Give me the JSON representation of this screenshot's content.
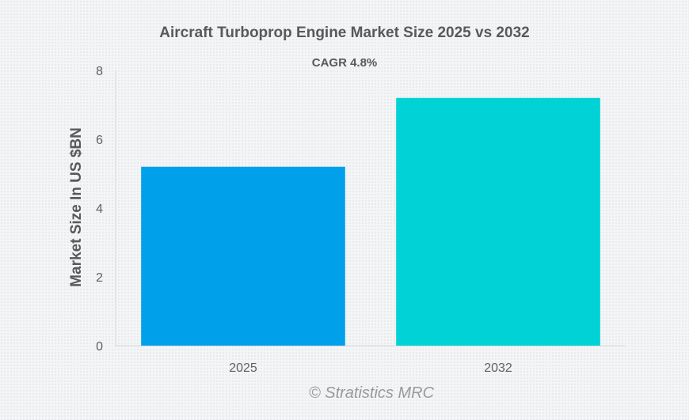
{
  "chart_data": {
    "type": "bar",
    "title": "Aircraft Turboprop Engine Market Size 2025 vs 2032",
    "subtitle": "CAGR 4.8%",
    "xlabel": "",
    "ylabel": "Market Size In US $BN",
    "categories": [
      "2025",
      "2032"
    ],
    "values": [
      5.2,
      7.2
    ],
    "colors": [
      "#00a0ea",
      "#00d2d5"
    ],
    "ylim": [
      0,
      8
    ],
    "yticks": [
      0,
      2,
      4,
      6,
      8
    ],
    "grid": false,
    "legend": "none",
    "watermark": "© Stratistics MRC"
  }
}
